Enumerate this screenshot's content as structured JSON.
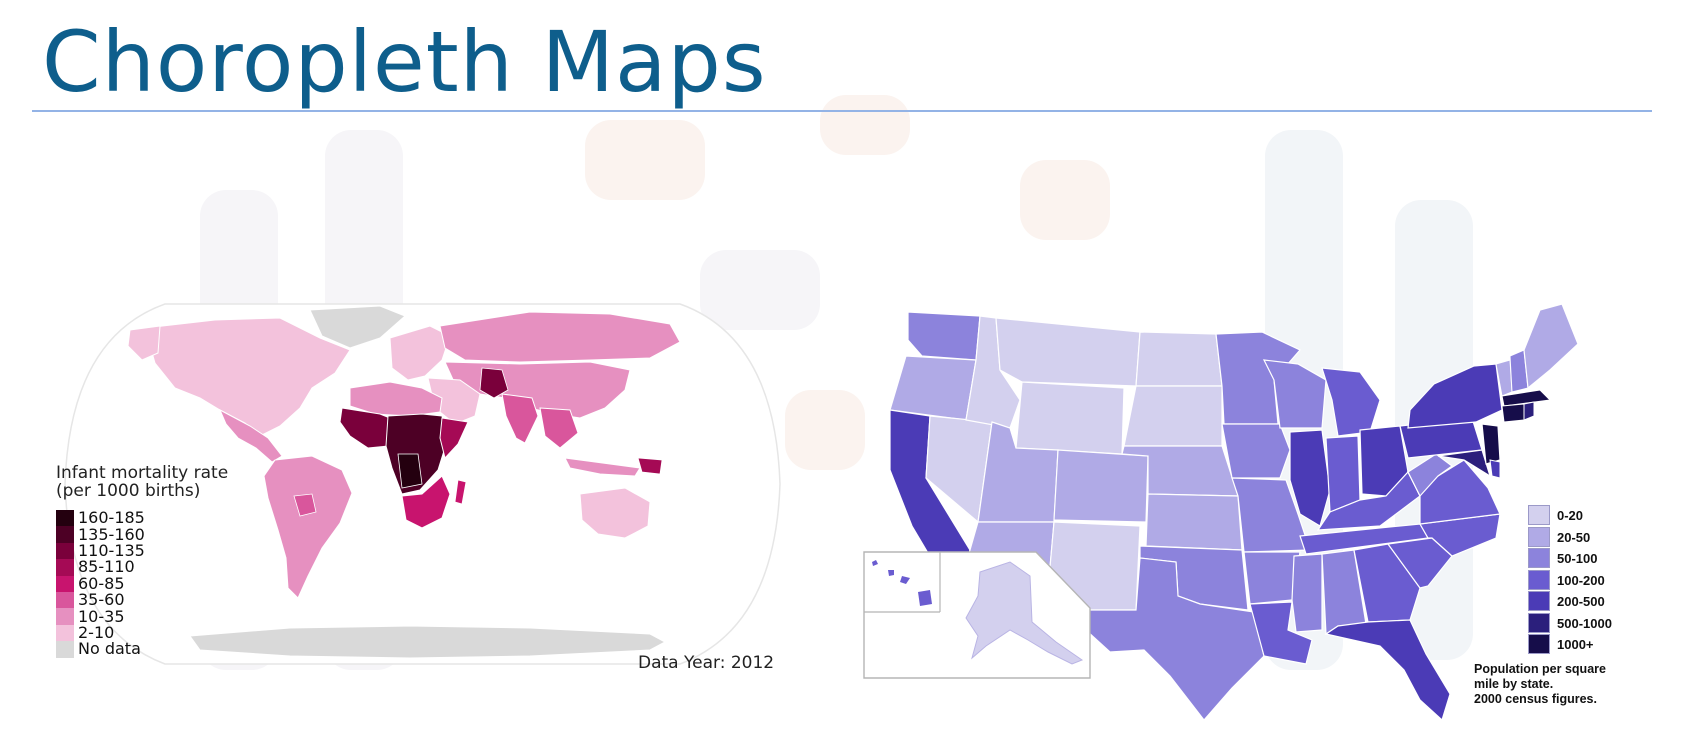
{
  "slide": {
    "title": "Choropleth Maps"
  },
  "world_map": {
    "legend_title_line1": "Infant mortality rate",
    "legend_title_line2": "(per 1000 births)",
    "legend": [
      {
        "label": "160-185",
        "color": "#24000f"
      },
      {
        "label": "135-160",
        "color": "#4d0025"
      },
      {
        "label": "110-135",
        "color": "#7a003b"
      },
      {
        "label": "85-110",
        "color": "#a50a55"
      },
      {
        "label": "60-85",
        "color": "#c8146e"
      },
      {
        "label": "35-60",
        "color": "#d9569c"
      },
      {
        "label": "10-35",
        "color": "#e690c0"
      },
      {
        "label": "2-10",
        "color": "#f3c2dc"
      },
      {
        "label": "No data",
        "color": "#d9d9d9"
      }
    ],
    "data_year": "Data Year: 2012"
  },
  "usa_map": {
    "legend": [
      {
        "label": "0-20",
        "color": "#d3d0ee"
      },
      {
        "label": "20-50",
        "color": "#b0aae6"
      },
      {
        "label": "50-100",
        "color": "#8c83dc"
      },
      {
        "label": "100-200",
        "color": "#6a5cd0"
      },
      {
        "label": "200-500",
        "color": "#4b3bb6"
      },
      {
        "label": "500-1000",
        "color": "#2b1f7c"
      },
      {
        "label": "1000+",
        "color": "#160d4a"
      }
    ],
    "caption_line1": "Population per square",
    "caption_line2": "mile by state.",
    "caption_line3": "2000 census figures."
  }
}
